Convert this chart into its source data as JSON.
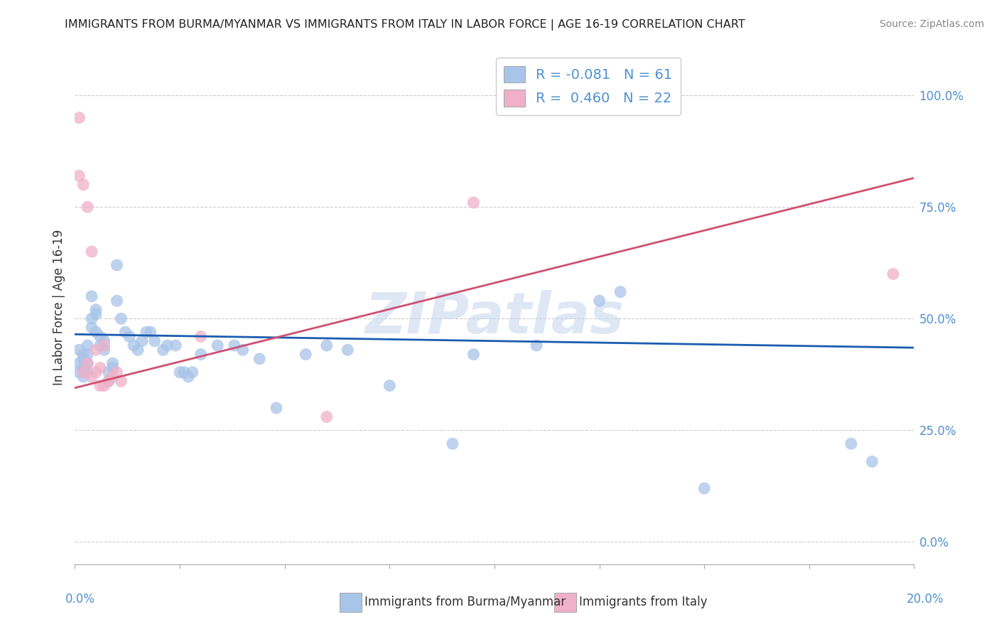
{
  "title": "IMMIGRANTS FROM BURMA/MYANMAR VS IMMIGRANTS FROM ITALY IN LABOR FORCE | AGE 16-19 CORRELATION CHART",
  "source": "Source: ZipAtlas.com",
  "ylabel": "In Labor Force | Age 16-19",
  "yticks": [
    "0.0%",
    "25.0%",
    "50.0%",
    "75.0%",
    "100.0%"
  ],
  "ytick_vals": [
    0.0,
    0.25,
    0.5,
    0.75,
    1.0
  ],
  "xlim": [
    0.0,
    0.2
  ],
  "ylim": [
    -0.05,
    1.1
  ],
  "legend_r_blue": "-0.081",
  "legend_n_blue": "61",
  "legend_r_pink": "0.460",
  "legend_n_pink": "22",
  "blue_scatter_x": [
    0.001,
    0.001,
    0.001,
    0.002,
    0.002,
    0.002,
    0.002,
    0.003,
    0.003,
    0.003,
    0.003,
    0.004,
    0.004,
    0.004,
    0.005,
    0.005,
    0.005,
    0.006,
    0.006,
    0.007,
    0.007,
    0.008,
    0.008,
    0.009,
    0.009,
    0.01,
    0.01,
    0.011,
    0.012,
    0.013,
    0.014,
    0.015,
    0.016,
    0.017,
    0.018,
    0.019,
    0.021,
    0.022,
    0.024,
    0.025,
    0.026,
    0.027,
    0.028,
    0.03,
    0.034,
    0.038,
    0.04,
    0.044,
    0.048,
    0.055,
    0.06,
    0.065,
    0.075,
    0.09,
    0.095,
    0.11,
    0.125,
    0.13,
    0.15,
    0.185,
    0.19
  ],
  "blue_scatter_y": [
    0.43,
    0.4,
    0.38,
    0.42,
    0.41,
    0.39,
    0.37,
    0.44,
    0.42,
    0.4,
    0.38,
    0.55,
    0.5,
    0.48,
    0.52,
    0.51,
    0.47,
    0.46,
    0.44,
    0.45,
    0.43,
    0.38,
    0.36,
    0.4,
    0.39,
    0.62,
    0.54,
    0.5,
    0.47,
    0.46,
    0.44,
    0.43,
    0.45,
    0.47,
    0.47,
    0.45,
    0.43,
    0.44,
    0.44,
    0.38,
    0.38,
    0.37,
    0.38,
    0.42,
    0.44,
    0.44,
    0.43,
    0.41,
    0.3,
    0.42,
    0.44,
    0.43,
    0.35,
    0.22,
    0.42,
    0.44,
    0.54,
    0.56,
    0.12,
    0.22,
    0.18
  ],
  "pink_scatter_x": [
    0.001,
    0.001,
    0.002,
    0.002,
    0.003,
    0.003,
    0.004,
    0.004,
    0.005,
    0.005,
    0.006,
    0.006,
    0.007,
    0.007,
    0.008,
    0.009,
    0.01,
    0.011,
    0.03,
    0.06,
    0.095,
    0.195
  ],
  "pink_scatter_y": [
    0.95,
    0.82,
    0.8,
    0.38,
    0.75,
    0.4,
    0.65,
    0.37,
    0.43,
    0.38,
    0.39,
    0.35,
    0.44,
    0.35,
    0.36,
    0.37,
    0.38,
    0.36,
    0.46,
    0.28,
    0.76,
    0.6
  ],
  "blue_line_x": [
    0.0,
    0.2
  ],
  "blue_line_y": [
    0.465,
    0.435
  ],
  "pink_line_x": [
    0.0,
    0.2
  ],
  "pink_line_y": [
    0.345,
    0.815
  ],
  "scatter_color_blue": "#a8c4e8",
  "scatter_color_pink": "#f0b0c8",
  "line_color_blue": "#1a5cb0",
  "line_color_pink": "#d05070",
  "legend_color_blue": "#a8c4e8",
  "legend_color_pink": "#f0b0c8",
  "grid_color": "#cccccc",
  "watermark": "ZIPatlas",
  "watermark_color": "#c8d8ec",
  "axis_label_color": "#5090d0",
  "background_color": "#ffffff"
}
